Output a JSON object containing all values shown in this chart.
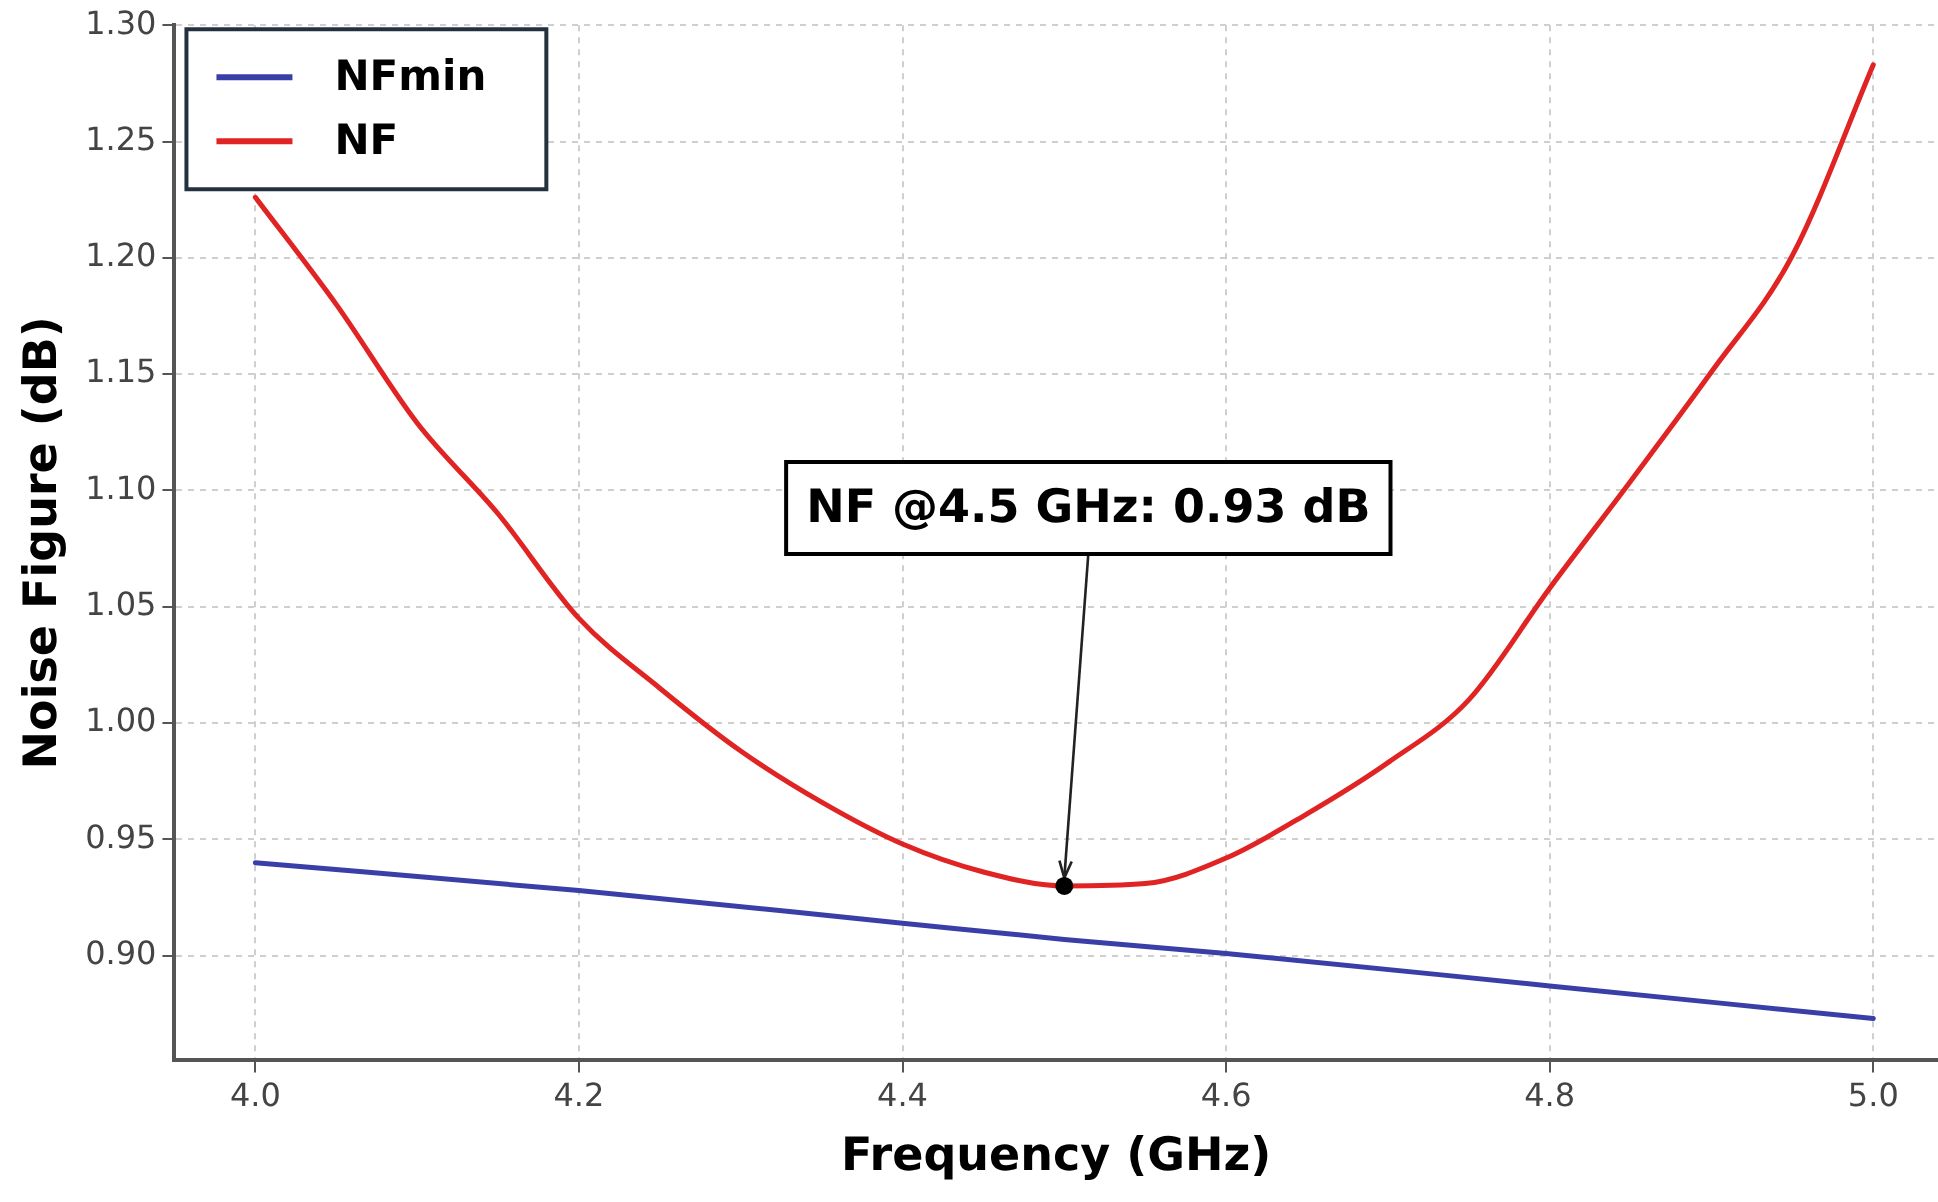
{
  "chart_data": {
    "type": "line",
    "xlabel": "Frequency (GHz)",
    "ylabel": "Noise Figure (dB)",
    "xlim": [
      3.95,
      5.04
    ],
    "ylim": [
      0.855,
      1.3
    ],
    "xticks": [
      {
        "value": 4,
        "label": "4.0"
      },
      {
        "value": 4.2,
        "label": "4.2"
      },
      {
        "value": 4.4,
        "label": "4.4"
      },
      {
        "value": 4.6,
        "label": "4.6"
      },
      {
        "value": 4.8,
        "label": "4.8"
      },
      {
        "value": 5,
        "label": "5.0"
      }
    ],
    "yticks": [
      {
        "value": 0.9,
        "label": "0.90"
      },
      {
        "value": 0.95,
        "label": "0.95"
      },
      {
        "value": 1,
        "label": "1.00"
      },
      {
        "value": 1.05,
        "label": "1.05"
      },
      {
        "value": 1.1,
        "label": "1.10"
      },
      {
        "value": 1.15,
        "label": "1.15"
      },
      {
        "value": 1.2,
        "label": "1.20"
      },
      {
        "value": 1.25,
        "label": "1.25"
      },
      {
        "value": 1.3,
        "label": "1.30"
      }
    ],
    "series": [
      {
        "name": "NFmin",
        "color": "#3a3fa8",
        "x": [
          4.0,
          4.2,
          4.4,
          4.5,
          4.6,
          4.8,
          5.0
        ],
        "values": [
          0.94,
          0.928,
          0.914,
          0.907,
          0.901,
          0.887,
          0.873
        ]
      },
      {
        "name": "NF",
        "color": "#e02424",
        "x": [
          4.0,
          4.05,
          4.1,
          4.15,
          4.2,
          4.25,
          4.3,
          4.35,
          4.4,
          4.45,
          4.5,
          4.55,
          4.6,
          4.65,
          4.7,
          4.75,
          4.8,
          4.85,
          4.9,
          4.95,
          5.0
        ],
        "values": [
          1.226,
          1.18,
          1.129,
          1.09,
          1.045,
          1.015,
          0.988,
          0.966,
          0.948,
          0.936,
          0.93,
          0.931,
          0.942,
          0.961,
          0.983,
          1.01,
          1.058,
          1.104,
          1.151,
          1.201,
          1.283
        ]
      }
    ],
    "annotations": [
      {
        "text": "NF @4.5 GHz: 0.93 dB",
        "x": 4.5,
        "y": 0.93
      }
    ],
    "grid": true,
    "legend": "top left",
    "marker": "none",
    "line_style": "solid"
  }
}
